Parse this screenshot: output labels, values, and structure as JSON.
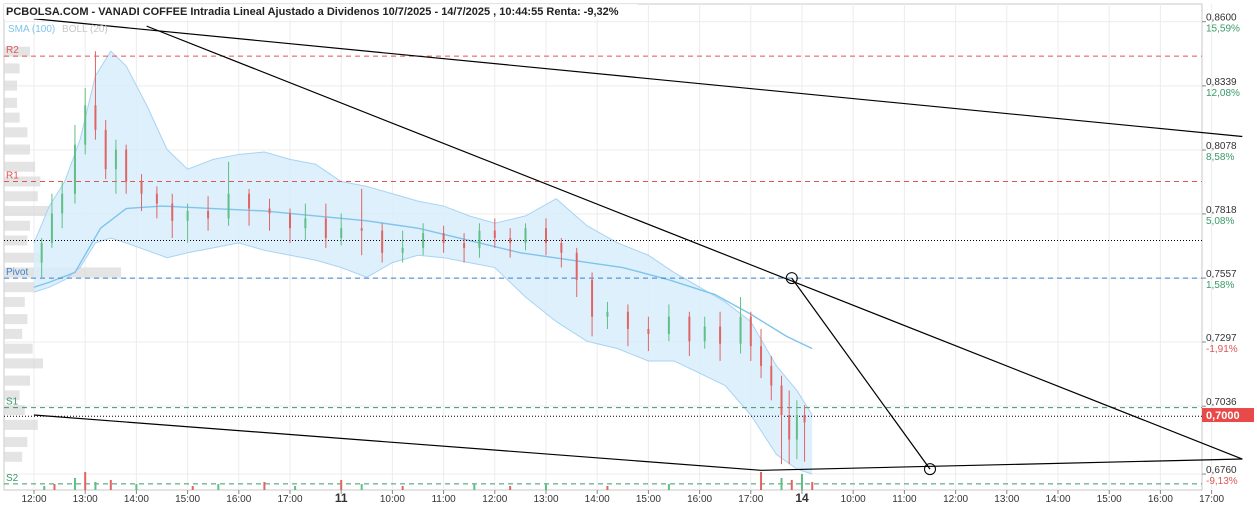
{
  "header": {
    "title": "PCBOLSA.COM - VANADI COFFEE Intradia Lineal Ajustado a Dividenos 10/7/2025 - 14/7/2025 , 10:44:55 Renta: -9,32%",
    "legend_sma": "SMA (100)",
    "legend_boll": "BOLL (20)"
  },
  "colors": {
    "up": "#5fbf85",
    "down": "#e06464",
    "band_fill": "#d8edfb",
    "band_edge": "#a8d3f2",
    "sma": "#7ec4ec",
    "resistance": "#e05555",
    "support": "#3a9a6a",
    "pivot": "#3a7fd0",
    "trendline": "#000000",
    "last_price_badge": "#e84a4a",
    "volume_profile": "#d9d9d9"
  },
  "chart_data": {
    "type": "candlestick",
    "title": "PCBOLSA.COM - VANADI COFFEE Intradia Lineal Ajustado a Dividenos 10/7/2025 - 14/7/2025 , 10:44:55 Renta: -9,32%",
    "y_axis": {
      "ticks": [
        {
          "price": "0,8600",
          "pct": "15,59%"
        },
        {
          "price": "0,8339",
          "pct": "12,08%"
        },
        {
          "price": "0,8078",
          "pct": "8,58%"
        },
        {
          "price": "0,7818",
          "pct": "5,08%"
        },
        {
          "price": "0,7557",
          "pct": "1,58%"
        },
        {
          "price": "0,7297",
          "pct": "-1,91%"
        },
        {
          "price": "0,7036",
          "pct": ""
        },
        {
          "price": "0,6760",
          "pct": "-9,13%"
        }
      ],
      "ylim": [
        0.6695,
        0.8672
      ]
    },
    "x_axis": {
      "ticks": [
        "12:00",
        "13:00",
        "14:00",
        "15:00",
        "16:00",
        "17:00",
        "11",
        "10:00",
        "11:00",
        "12:00",
        "13:00",
        "14:00",
        "15:00",
        "16:00",
        "17:00",
        "14",
        "10:00",
        "11:00",
        "12:00",
        "13:00",
        "14:00",
        "15:00",
        "16:00",
        "17:00"
      ],
      "bold_ticks": [
        "11",
        "14"
      ]
    },
    "last_price": "0,7000",
    "levels": [
      {
        "name": "R2",
        "value": 0.846,
        "kind": "resistance"
      },
      {
        "name": "R1",
        "value": 0.795,
        "kind": "resistance"
      },
      {
        "name": "Pivot",
        "value": 0.7557,
        "kind": "pivot"
      },
      {
        "name": "S1",
        "value": 0.703,
        "kind": "support"
      },
      {
        "name": "S2",
        "value": 0.672,
        "kind": "support"
      }
    ],
    "dotted_levels": [
      0.771,
      0.6995
    ],
    "indicators": {
      "sma_100": [
        [
          0,
          0.752
        ],
        [
          0.3,
          0.754
        ],
        [
          0.8,
          0.758
        ],
        [
          1.3,
          0.776
        ],
        [
          1.8,
          0.784
        ],
        [
          2.5,
          0.785
        ],
        [
          3.5,
          0.784
        ],
        [
          4.5,
          0.783
        ],
        [
          5.5,
          0.781
        ],
        [
          6.5,
          0.779
        ],
        [
          7.5,
          0.776
        ],
        [
          8.5,
          0.771
        ],
        [
          9.5,
          0.766
        ],
        [
          10.5,
          0.763
        ],
        [
          11.5,
          0.76
        ],
        [
          12.4,
          0.755
        ],
        [
          13.3,
          0.749
        ],
        [
          14.0,
          0.741
        ],
        [
          14.7,
          0.732
        ],
        [
          15.2,
          0.727
        ]
      ],
      "boll_upper": [
        [
          0,
          0.77
        ],
        [
          0.3,
          0.785
        ],
        [
          0.6,
          0.795
        ],
        [
          0.9,
          0.812
        ],
        [
          1.2,
          0.838
        ],
        [
          1.5,
          0.848
        ],
        [
          1.8,
          0.842
        ],
        [
          2.2,
          0.826
        ],
        [
          2.6,
          0.808
        ],
        [
          3.0,
          0.8
        ],
        [
          3.5,
          0.804
        ],
        [
          4.0,
          0.806
        ],
        [
          4.5,
          0.807
        ],
        [
          5.0,
          0.804
        ],
        [
          5.5,
          0.802
        ],
        [
          6.0,
          0.795
        ],
        [
          6.5,
          0.793
        ],
        [
          7.0,
          0.79
        ],
        [
          7.5,
          0.787
        ],
        [
          8.0,
          0.785
        ],
        [
          8.5,
          0.781
        ],
        [
          9.0,
          0.778
        ],
        [
          9.6,
          0.781
        ],
        [
          10.2,
          0.788
        ],
        [
          10.8,
          0.777
        ],
        [
          11.4,
          0.77
        ],
        [
          12.0,
          0.765
        ],
        [
          12.5,
          0.758
        ],
        [
          13.0,
          0.752
        ],
        [
          13.5,
          0.746
        ],
        [
          14.0,
          0.738
        ],
        [
          14.5,
          0.72
        ],
        [
          14.9,
          0.71
        ],
        [
          15.2,
          0.7
        ]
      ],
      "boll_lower": [
        [
          0,
          0.75
        ],
        [
          0.3,
          0.752
        ],
        [
          0.6,
          0.755
        ],
        [
          0.9,
          0.76
        ],
        [
          1.2,
          0.77
        ],
        [
          1.5,
          0.772
        ],
        [
          1.8,
          0.77
        ],
        [
          2.2,
          0.767
        ],
        [
          2.6,
          0.764
        ],
        [
          3.0,
          0.766
        ],
        [
          3.5,
          0.768
        ],
        [
          4.0,
          0.77
        ],
        [
          4.5,
          0.767
        ],
        [
          5.0,
          0.765
        ],
        [
          5.5,
          0.763
        ],
        [
          6.0,
          0.76
        ],
        [
          6.5,
          0.756
        ],
        [
          7.0,
          0.762
        ],
        [
          7.5,
          0.765
        ],
        [
          8.0,
          0.764
        ],
        [
          8.5,
          0.762
        ],
        [
          9.0,
          0.76
        ],
        [
          9.6,
          0.748
        ],
        [
          10.2,
          0.738
        ],
        [
          10.8,
          0.73
        ],
        [
          11.4,
          0.727
        ],
        [
          12.0,
          0.722
        ],
        [
          12.5,
          0.722
        ],
        [
          13.0,
          0.717
        ],
        [
          13.5,
          0.712
        ],
        [
          14.0,
          0.7
        ],
        [
          14.5,
          0.684
        ],
        [
          14.9,
          0.678
        ],
        [
          15.2,
          0.676
        ]
      ]
    },
    "candles": [
      [
        0.15,
        0.762,
        0.77,
        0.756,
        0.772
      ],
      [
        0.35,
        0.77,
        0.782,
        0.768,
        0.79
      ],
      [
        0.55,
        0.782,
        0.79,
        0.776,
        0.795
      ],
      [
        0.8,
        0.79,
        0.81,
        0.786,
        0.818
      ],
      [
        1.0,
        0.81,
        0.826,
        0.806,
        0.833
      ],
      [
        1.2,
        0.826,
        0.816,
        0.812,
        0.848
      ],
      [
        1.4,
        0.816,
        0.8,
        0.796,
        0.82
      ],
      [
        1.6,
        0.8,
        0.808,
        0.79,
        0.812
      ],
      [
        1.8,
        0.808,
        0.795,
        0.79,
        0.81
      ],
      [
        2.1,
        0.795,
        0.79,
        0.783,
        0.798
      ],
      [
        2.4,
        0.79,
        0.786,
        0.78,
        0.793
      ],
      [
        2.7,
        0.786,
        0.779,
        0.772,
        0.79
      ],
      [
        3.0,
        0.779,
        0.783,
        0.77,
        0.786
      ],
      [
        3.4,
        0.783,
        0.78,
        0.775,
        0.789
      ],
      [
        3.8,
        0.78,
        0.79,
        0.777,
        0.803
      ],
      [
        4.2,
        0.79,
        0.784,
        0.777,
        0.792
      ],
      [
        4.6,
        0.784,
        0.782,
        0.775,
        0.788
      ],
      [
        5.0,
        0.782,
        0.776,
        0.77,
        0.784
      ],
      [
        5.3,
        0.776,
        0.78,
        0.771,
        0.786
      ],
      [
        5.7,
        0.78,
        0.772,
        0.768,
        0.786
      ],
      [
        6.0,
        0.772,
        0.776,
        0.769,
        0.782
      ],
      [
        6.4,
        0.776,
        0.775,
        0.765,
        0.792
      ],
      [
        6.8,
        0.775,
        0.766,
        0.762,
        0.778
      ],
      [
        7.2,
        0.766,
        0.768,
        0.762,
        0.775
      ],
      [
        7.6,
        0.768,
        0.774,
        0.765,
        0.778
      ],
      [
        8.0,
        0.774,
        0.77,
        0.766,
        0.777
      ],
      [
        8.4,
        0.77,
        0.768,
        0.762,
        0.774
      ],
      [
        8.7,
        0.768,
        0.775,
        0.764,
        0.778
      ],
      [
        9.0,
        0.775,
        0.772,
        0.768,
        0.78
      ],
      [
        9.3,
        0.772,
        0.77,
        0.764,
        0.776
      ],
      [
        9.6,
        0.77,
        0.776,
        0.767,
        0.778
      ],
      [
        10.0,
        0.776,
        0.77,
        0.765,
        0.78
      ],
      [
        10.3,
        0.77,
        0.766,
        0.76,
        0.772
      ],
      [
        10.6,
        0.766,
        0.755,
        0.748,
        0.768
      ],
      [
        10.9,
        0.755,
        0.74,
        0.732,
        0.758
      ],
      [
        11.2,
        0.74,
        0.742,
        0.735,
        0.746
      ],
      [
        11.6,
        0.742,
        0.735,
        0.728,
        0.745
      ],
      [
        12.0,
        0.735,
        0.733,
        0.726,
        0.74
      ],
      [
        12.4,
        0.733,
        0.74,
        0.73,
        0.745
      ],
      [
        12.8,
        0.74,
        0.73,
        0.724,
        0.742
      ],
      [
        13.1,
        0.73,
        0.736,
        0.727,
        0.74
      ],
      [
        13.4,
        0.736,
        0.729,
        0.722,
        0.742
      ],
      [
        13.8,
        0.729,
        0.74,
        0.725,
        0.748
      ],
      [
        14.0,
        0.74,
        0.728,
        0.722,
        0.742
      ],
      [
        14.2,
        0.728,
        0.72,
        0.715,
        0.735
      ],
      [
        14.4,
        0.72,
        0.712,
        0.706,
        0.724
      ],
      [
        14.6,
        0.712,
        0.7,
        0.68,
        0.716
      ],
      [
        14.75,
        0.7,
        0.69,
        0.68,
        0.71
      ],
      [
        14.9,
        0.69,
        0.7,
        0.682,
        0.706
      ],
      [
        15.05,
        0.7,
        0.697,
        0.681,
        0.704
      ]
    ],
    "trendlines": [
      [
        [
          0.0,
          0.8612
        ],
        [
          23.6,
          0.8133
        ]
      ],
      [
        [
          2.2,
          0.8582
        ],
        [
          23.6,
          0.6821
        ]
      ],
      [
        [
          0.0,
          0.7
        ],
        [
          14.2,
          0.6775
        ]
      ],
      [
        [
          14.2,
          0.6775
        ],
        [
          23.6,
          0.6821
        ]
      ],
      [
        [
          14.8,
          0.7557
        ],
        [
          17.5,
          0.678
        ]
      ]
    ],
    "volume_bars": [
      [
        0.2,
        2
      ],
      [
        0.4,
        3
      ],
      [
        0.8,
        6
      ],
      [
        1.0,
        9
      ],
      [
        1.2,
        4
      ],
      [
        1.5,
        5
      ],
      [
        2.0,
        3
      ],
      [
        3.1,
        2
      ],
      [
        3.6,
        3
      ],
      [
        4.5,
        4
      ],
      [
        5.1,
        2
      ],
      [
        6.0,
        5
      ],
      [
        6.4,
        3
      ],
      [
        7.2,
        2
      ],
      [
        8.6,
        3
      ],
      [
        9.3,
        2
      ],
      [
        10.0,
        3
      ],
      [
        11.2,
        2
      ],
      [
        12.4,
        3
      ],
      [
        14.2,
        9
      ],
      [
        14.6,
        6
      ],
      [
        14.8,
        5
      ],
      [
        15.0,
        8
      ],
      [
        15.2,
        4
      ]
    ],
    "volume_profile": [
      [
        0.8478,
        1.0
      ],
      [
        0.841,
        0.6
      ],
      [
        0.834,
        0.5
      ],
      [
        0.827,
        0.5
      ],
      [
        0.821,
        0.6
      ],
      [
        0.815,
        0.9
      ],
      [
        0.808,
        1.0
      ],
      [
        0.801,
        1.2
      ],
      [
        0.795,
        1.4
      ],
      [
        0.789,
        1.3
      ],
      [
        0.783,
        1.8
      ],
      [
        0.777,
        1.0
      ],
      [
        0.771,
        0.9
      ],
      [
        0.764,
        1.5
      ],
      [
        0.758,
        4.5
      ],
      [
        0.752,
        1.2
      ],
      [
        0.746,
        0.8
      ],
      [
        0.739,
        0.9
      ],
      [
        0.733,
        0.7
      ],
      [
        0.727,
        1.1
      ],
      [
        0.721,
        1.5
      ],
      [
        0.714,
        1.0
      ],
      [
        0.708,
        0.6
      ],
      [
        0.702,
        0.8
      ],
      [
        0.696,
        1.3
      ],
      [
        0.689,
        0.9
      ],
      [
        0.683,
        0.7
      ]
    ],
    "markers": [
      [
        14.8,
        0.7557
      ],
      [
        17.5,
        0.678
      ]
    ]
  }
}
